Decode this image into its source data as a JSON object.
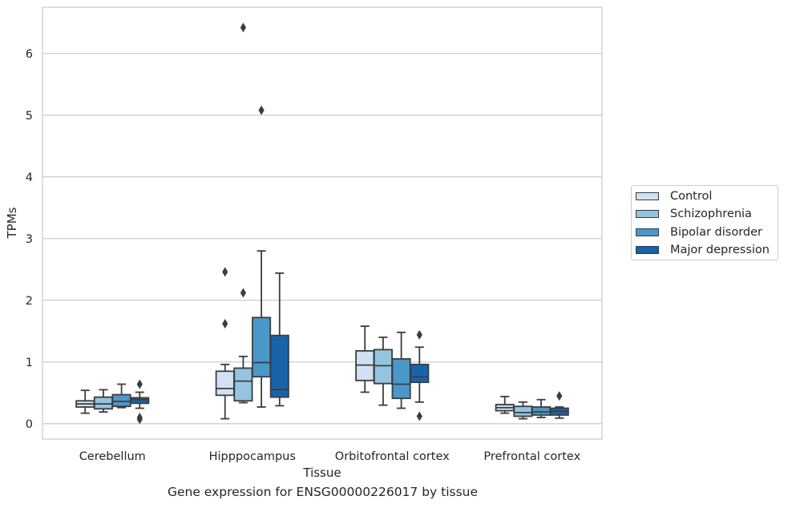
{
  "caption": "Gene expression for ENSG00000226017 by tissue",
  "chart_data": {
    "type": "boxplot",
    "xlabel": "Tissue",
    "ylabel": "TPMs",
    "ylim": [
      -0.25,
      6.75
    ],
    "yticks": [
      0,
      1,
      2,
      3,
      4,
      5,
      6
    ],
    "grid": true,
    "legend_position": "right",
    "categories": [
      "Cerebellum",
      "Hipppocampus",
      "Orbitofrontal cortex",
      "Prefrontal cortex"
    ],
    "series": [
      {
        "name": "Control",
        "color": "#d0e1f2",
        "boxes": [
          {
            "whislo": 0.17,
            "q1": 0.27,
            "med": 0.32,
            "q3": 0.37,
            "whishi": 0.54,
            "fliers": []
          },
          {
            "whislo": 0.08,
            "q1": 0.46,
            "med": 0.57,
            "q3": 0.85,
            "whishi": 0.96,
            "fliers": [
              1.62,
              2.46
            ]
          },
          {
            "whislo": 0.51,
            "q1": 0.7,
            "med": 0.95,
            "q3": 1.18,
            "whishi": 1.58,
            "fliers": []
          },
          {
            "whislo": 0.17,
            "q1": 0.21,
            "med": 0.26,
            "q3": 0.31,
            "whishi": 0.44,
            "fliers": []
          }
        ]
      },
      {
        "name": "Schizophrenia",
        "color": "#94c4df",
        "boxes": [
          {
            "whislo": 0.19,
            "q1": 0.24,
            "med": 0.32,
            "q3": 0.43,
            "whishi": 0.55,
            "fliers": []
          },
          {
            "whislo": 0.34,
            "q1": 0.37,
            "med": 0.69,
            "q3": 0.9,
            "whishi": 1.09,
            "fliers": [
              2.12,
              6.42
            ]
          },
          {
            "whislo": 0.3,
            "q1": 0.65,
            "med": 0.94,
            "q3": 1.2,
            "whishi": 1.4,
            "fliers": []
          },
          {
            "whislo": 0.08,
            "q1": 0.12,
            "med": 0.18,
            "q3": 0.28,
            "whishi": 0.35,
            "fliers": []
          }
        ]
      },
      {
        "name": "Bipolar disorder",
        "color": "#4a98c9",
        "boxes": [
          {
            "whislo": 0.26,
            "q1": 0.28,
            "med": 0.36,
            "q3": 0.47,
            "whishi": 0.64,
            "fliers": []
          },
          {
            "whislo": 0.27,
            "q1": 0.76,
            "med": 0.99,
            "q3": 1.72,
            "whishi": 2.8,
            "fliers": [
              5.08
            ]
          },
          {
            "whislo": 0.25,
            "q1": 0.41,
            "med": 0.64,
            "q3": 1.05,
            "whishi": 1.48,
            "fliers": []
          },
          {
            "whislo": 0.1,
            "q1": 0.14,
            "med": 0.19,
            "q3": 0.27,
            "whishi": 0.39,
            "fliers": []
          }
        ]
      },
      {
        "name": "Major depression",
        "color": "#1764ab",
        "boxes": [
          {
            "whislo": 0.25,
            "q1": 0.33,
            "med": 0.39,
            "q3": 0.42,
            "whishi": 0.51,
            "fliers": [
              0.07,
              0.1,
              0.64
            ]
          },
          {
            "whislo": 0.29,
            "q1": 0.43,
            "med": 0.55,
            "q3": 1.43,
            "whishi": 2.44,
            "fliers": []
          },
          {
            "whislo": 0.35,
            "q1": 0.67,
            "med": 0.76,
            "q3": 0.96,
            "whishi": 1.24,
            "fliers": [
              0.12,
              1.44
            ]
          },
          {
            "whislo": 0.09,
            "q1": 0.14,
            "med": 0.2,
            "q3": 0.25,
            "whishi": 0.27,
            "fliers": [
              0.45
            ]
          }
        ]
      }
    ]
  }
}
